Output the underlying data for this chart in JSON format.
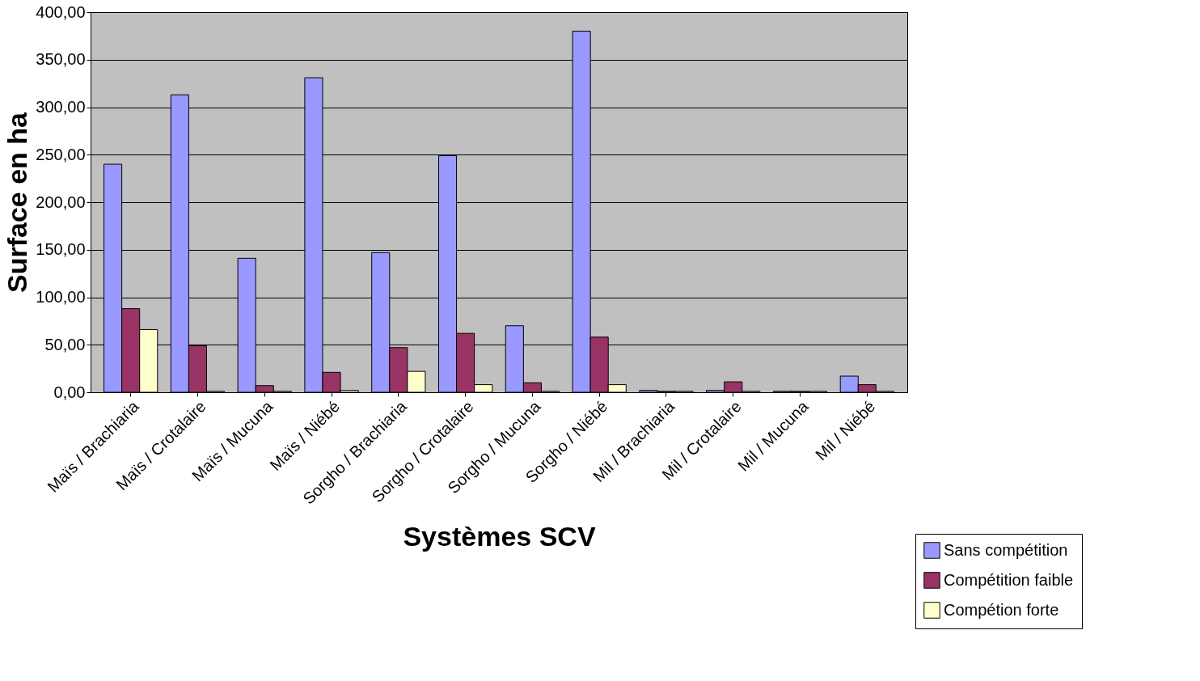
{
  "chart_data": {
    "type": "bar",
    "xlabel": "Systèmes SCV",
    "ylabel": "Surface en ha",
    "categories": [
      "Maïs / Brachiaria",
      "Maïs / Crotalaire",
      "Maïs / Mucuna",
      "Maïs / Niébé",
      "Sorgho / Brachiaria",
      "Sorgho / Crotalaire",
      "Sorgho / Mucuna",
      "Sorgho / Niébé",
      "Mil / Brachiaria",
      "Mil / Crotalaire",
      "Mil / Mucuna",
      "Mil / Niébé"
    ],
    "series": [
      {
        "name": "Sans compétition",
        "color": "#9999ff",
        "values": [
          240,
          313,
          141,
          331,
          147,
          249,
          70,
          380,
          2,
          2,
          1,
          17
        ]
      },
      {
        "name": "Compétition faible",
        "color": "#993366",
        "values": [
          88,
          49,
          7,
          21,
          47,
          62,
          10,
          58,
          1,
          11,
          1,
          8
        ]
      },
      {
        "name": "Compétion forte",
        "color": "#ffffcc",
        "values": [
          66,
          1,
          1,
          2,
          22,
          8,
          1,
          8,
          1,
          1,
          1,
          1
        ]
      }
    ],
    "ylim": [
      0,
      400
    ],
    "yticks": [
      {
        "value": 0,
        "label": "0,00"
      },
      {
        "value": 50,
        "label": "50,00"
      },
      {
        "value": 100,
        "label": "100,00"
      },
      {
        "value": 150,
        "label": "150,00"
      },
      {
        "value": 200,
        "label": "200,00"
      },
      {
        "value": 250,
        "label": "250,00"
      },
      {
        "value": 300,
        "label": "300,00"
      },
      {
        "value": 350,
        "label": "350,00"
      },
      {
        "value": 400,
        "label": "400,00"
      }
    ],
    "grid": "y",
    "legend": "bottom right"
  }
}
